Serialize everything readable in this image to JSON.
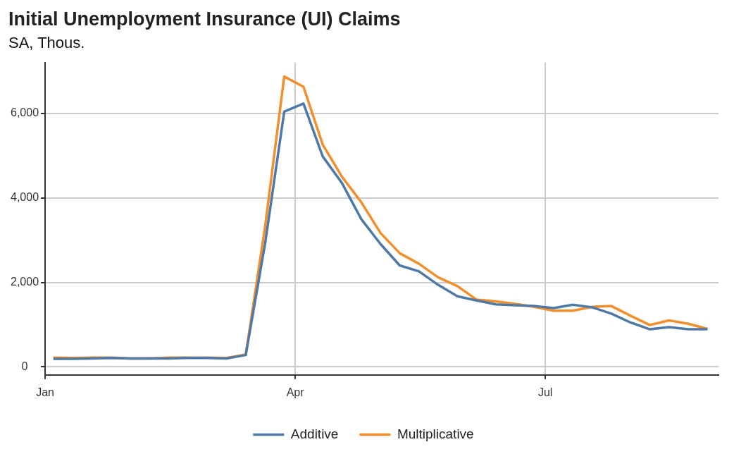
{
  "chart_data": {
    "type": "line",
    "title": "Initial Unemployment Insurance (UI) Claims",
    "subtitle": "SA, Thous.",
    "x": [
      "--01-04",
      "--01-11",
      "--01-18",
      "--01-25",
      "--02-01",
      "--02-08",
      "--02-15",
      "--02-22",
      "--02-29",
      "--03-07",
      "--03-14",
      "--03-21",
      "--03-28",
      "--04-04",
      "--04-11",
      "--04-18",
      "--04-25",
      "--05-02",
      "--05-09",
      "--05-16",
      "--05-23",
      "--05-30",
      "--06-06",
      "--06-13",
      "--06-20",
      "--06-27",
      "--07-04",
      "--07-11",
      "--07-18",
      "--07-25",
      "--08-01",
      "--08-08",
      "--08-15",
      "--08-22",
      "--08-29"
    ],
    "series": [
      {
        "name": "Additive",
        "color": "#4e79a7",
        "values": [
          190,
          190,
          200,
          210,
          200,
          200,
          200,
          210,
          210,
          200,
          280,
          2900,
          6040,
          6230,
          4980,
          4350,
          3500,
          2910,
          2400,
          2260,
          1940,
          1670,
          1570,
          1480,
          1460,
          1440,
          1390,
          1470,
          1410,
          1260,
          1050,
          890,
          940,
          890,
          890
        ]
      },
      {
        "name": "Multiplicative",
        "color": "#f28e2b",
        "values": [
          220,
          210,
          220,
          220,
          200,
          200,
          220,
          220,
          220,
          210,
          290,
          3300,
          6870,
          6630,
          5260,
          4500,
          3900,
          3170,
          2690,
          2440,
          2120,
          1910,
          1590,
          1550,
          1490,
          1420,
          1330,
          1330,
          1420,
          1440,
          1210,
          990,
          1100,
          1020,
          900
        ]
      }
    ],
    "xlim": [
      "--01-01",
      "--09-02"
    ],
    "xticks": [
      {
        "value": "--01-01",
        "label": "Jan"
      },
      {
        "value": "--04-01",
        "label": "Apr"
      },
      {
        "value": "--07-01",
        "label": "Jul"
      }
    ],
    "ylim": [
      -190,
      7200
    ],
    "yticks": [
      {
        "value": 0,
        "label": "0"
      },
      {
        "value": 2000,
        "label": "2,000"
      },
      {
        "value": 4000,
        "label": "4,000"
      },
      {
        "value": 6000,
        "label": "6,000"
      }
    ],
    "grid": true,
    "legend": "bottom",
    "line_style": "solid",
    "marker": "none"
  }
}
